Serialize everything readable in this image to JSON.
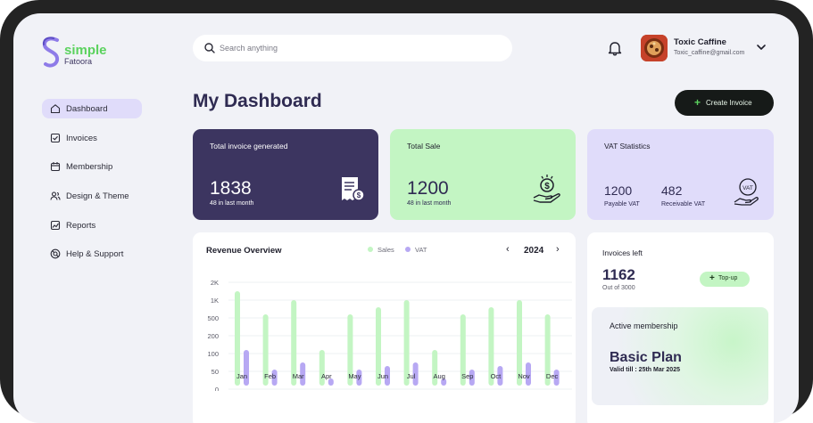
{
  "brand": {
    "name": "simple",
    "sub": "Fatoora",
    "color": "#5bd25e",
    "dark": "#3c3560"
  },
  "search": {
    "placeholder": "Search anything",
    "value": ""
  },
  "user": {
    "name": "Toxic Caffine",
    "email": "Toxic_caffine@gmail.com"
  },
  "sidebar": {
    "items": [
      {
        "label": "Dashboard",
        "icon": "home-icon",
        "active": true
      },
      {
        "label": "Invoices",
        "icon": "checkbox-icon",
        "active": false
      },
      {
        "label": "Membership",
        "icon": "calendar-icon",
        "active": false
      },
      {
        "label": "Design & Theme",
        "icon": "users-icon",
        "active": false
      },
      {
        "label": "Reports",
        "icon": "chart-icon",
        "active": false
      },
      {
        "label": "Help & Support",
        "icon": "support-icon",
        "active": false
      }
    ]
  },
  "page": {
    "title": "My Dashboard",
    "create_label": "Create Invoice"
  },
  "cards": {
    "total_generated": {
      "title": "Total invoice generated",
      "value": "1838",
      "note": "48 in last month",
      "bg": "#3c3560"
    },
    "total_sale": {
      "title": "Total Sale",
      "value": "1200",
      "note": "48 in last month",
      "bg": "#c3f5c3"
    },
    "vat": {
      "title": "VAT Statistics",
      "payable_value": "1200",
      "payable_label": "Payable VAT",
      "receivable_value": "482",
      "receivable_label": "Receivable VAT",
      "bg": "#e0dcfa"
    }
  },
  "revenue": {
    "title": "Revenue Overview",
    "legend": {
      "sales": "Sales",
      "vat": "VAT"
    },
    "year": "2024",
    "colors": {
      "sales": "#c3f5c3",
      "vat": "#b7a8f3"
    }
  },
  "chart_data": {
    "type": "bar",
    "categories": [
      "Jan",
      "Feb",
      "Mar",
      "Apr",
      "May",
      "Jun",
      "Jul",
      "Aug",
      "Sep",
      "Oct",
      "Nov",
      "Dec"
    ],
    "yticks": [
      "0",
      "50",
      "100",
      "200",
      "500",
      "1K",
      "2K"
    ],
    "series": [
      {
        "name": "Sales",
        "values": [
          1500,
          600,
          1000,
          120,
          600,
          800,
          1000,
          120,
          600,
          800,
          1000,
          600
        ]
      },
      {
        "name": "VAT",
        "values": [
          120,
          55,
          75,
          30,
          55,
          65,
          75,
          30,
          55,
          65,
          75,
          55
        ]
      }
    ],
    "legend": "top"
  },
  "invoices_left": {
    "title": "Invoices left",
    "count": "1162",
    "out_of": "Out of 3000",
    "topup_label": "Top-up"
  },
  "membership": {
    "title": "Active membership",
    "plan": "Basic Plan",
    "valid": "Valid till : 25th Mar 2025"
  }
}
